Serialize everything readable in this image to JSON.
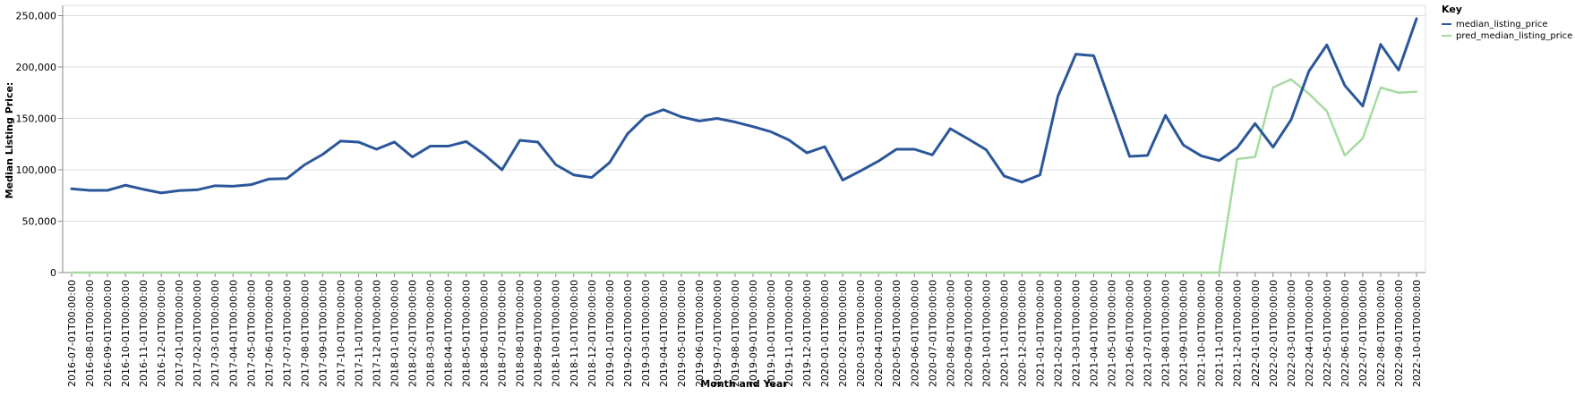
{
  "chart_data": {
    "type": "line",
    "xlabel": "Month and Year",
    "ylabel": "Median Listing Price:",
    "ylim": [
      0,
      260000
    ],
    "yticks": [
      0,
      50000,
      100000,
      150000,
      200000,
      250000
    ],
    "grid": true,
    "legend_title": "Key",
    "legend_position": "top-right",
    "x": [
      "2016-07-01T00:00:00",
      "2016-08-01T00:00:00",
      "2016-09-01T00:00:00",
      "2016-10-01T00:00:00",
      "2016-11-01T00:00:00",
      "2016-12-01T00:00:00",
      "2017-01-01T00:00:00",
      "2017-02-01T00:00:00",
      "2017-03-01T00:00:00",
      "2017-04-01T00:00:00",
      "2017-05-01T00:00:00",
      "2017-06-01T00:00:00",
      "2017-07-01T00:00:00",
      "2017-08-01T00:00:00",
      "2017-09-01T00:00:00",
      "2017-10-01T00:00:00",
      "2017-11-01T00:00:00",
      "2017-12-01T00:00:00",
      "2018-01-01T00:00:00",
      "2018-02-01T00:00:00",
      "2018-03-01T00:00:00",
      "2018-04-01T00:00:00",
      "2018-05-01T00:00:00",
      "2018-06-01T00:00:00",
      "2018-07-01T00:00:00",
      "2018-08-01T00:00:00",
      "2018-09-01T00:00:00",
      "2018-10-01T00:00:00",
      "2018-11-01T00:00:00",
      "2018-12-01T00:00:00",
      "2019-01-01T00:00:00",
      "2019-02-01T00:00:00",
      "2019-03-01T00:00:00",
      "2019-04-01T00:00:00",
      "2019-05-01T00:00:00",
      "2019-06-01T00:00:00",
      "2019-07-01T00:00:00",
      "2019-08-01T00:00:00",
      "2019-09-01T00:00:00",
      "2019-10-01T00:00:00",
      "2019-11-01T00:00:00",
      "2019-12-01T00:00:00",
      "2020-01-01T00:00:00",
      "2020-02-01T00:00:00",
      "2020-03-01T00:00:00",
      "2020-04-01T00:00:00",
      "2020-05-01T00:00:00",
      "2020-06-01T00:00:00",
      "2020-07-01T00:00:00",
      "2020-08-01T00:00:00",
      "2020-09-01T00:00:00",
      "2020-10-01T00:00:00",
      "2020-11-01T00:00:00",
      "2020-12-01T00:00:00",
      "2021-01-01T00:00:00",
      "2021-02-01T00:00:00",
      "2021-03-01T00:00:00",
      "2021-04-01T00:00:00",
      "2021-05-01T00:00:00",
      "2021-06-01T00:00:00",
      "2021-07-01T00:00:00",
      "2021-08-01T00:00:00",
      "2021-09-01T00:00:00",
      "2021-10-01T00:00:00",
      "2021-11-01T00:00:00",
      "2021-12-01T00:00:00",
      "2022-01-01T00:00:00",
      "2022-02-01T00:00:00",
      "2022-03-01T00:00:00",
      "2022-04-01T00:00:00",
      "2022-05-01T00:00:00",
      "2022-06-01T00:00:00",
      "2022-07-01T00:00:00",
      "2022-08-01T00:00:00",
      "2022-09-01T00:00:00",
      "2022-10-01T00:00:00"
    ],
    "series": [
      {
        "name": "median_listing_price",
        "color": "#2b579a",
        "values": [
          81500,
          80000,
          80000,
          85000,
          81000,
          77500,
          79800,
          80500,
          84500,
          84000,
          85500,
          91000,
          91500,
          105000,
          115000,
          128000,
          127000,
          120000,
          127000,
          112500,
          123000,
          123000,
          127500,
          115000,
          100000,
          128700,
          127000,
          105000,
          95000,
          92500,
          107000,
          135000,
          152000,
          158500,
          151500,
          147500,
          150000,
          146500,
          142000,
          137000,
          129000,
          116500,
          122500,
          90000,
          99000,
          108500,
          120000,
          120000,
          114500,
          140000,
          130000,
          119500,
          94000,
          88000,
          95000,
          171500,
          212500,
          211000,
          162000,
          113000,
          114000,
          153000,
          124000,
          113500,
          109000,
          121500,
          145000,
          122000,
          148500,
          196000,
          221500,
          182000,
          162000,
          222000,
          197000,
          247000
        ]
      },
      {
        "name": "pred_median_listing_price",
        "color": "#a6dba0",
        "values": [
          0,
          0,
          0,
          0,
          0,
          0,
          0,
          0,
          0,
          0,
          0,
          0,
          0,
          0,
          0,
          0,
          0,
          0,
          0,
          0,
          0,
          0,
          0,
          0,
          0,
          0,
          0,
          0,
          0,
          0,
          0,
          0,
          0,
          0,
          0,
          0,
          0,
          0,
          0,
          0,
          0,
          0,
          0,
          0,
          0,
          0,
          0,
          0,
          0,
          0,
          0,
          0,
          0,
          0,
          0,
          0,
          0,
          0,
          0,
          0,
          0,
          0,
          0,
          0,
          0,
          110500,
          112500,
          180000,
          188000,
          174000,
          157000,
          114000,
          130500,
          180000,
          175000,
          176000
        ]
      }
    ]
  }
}
